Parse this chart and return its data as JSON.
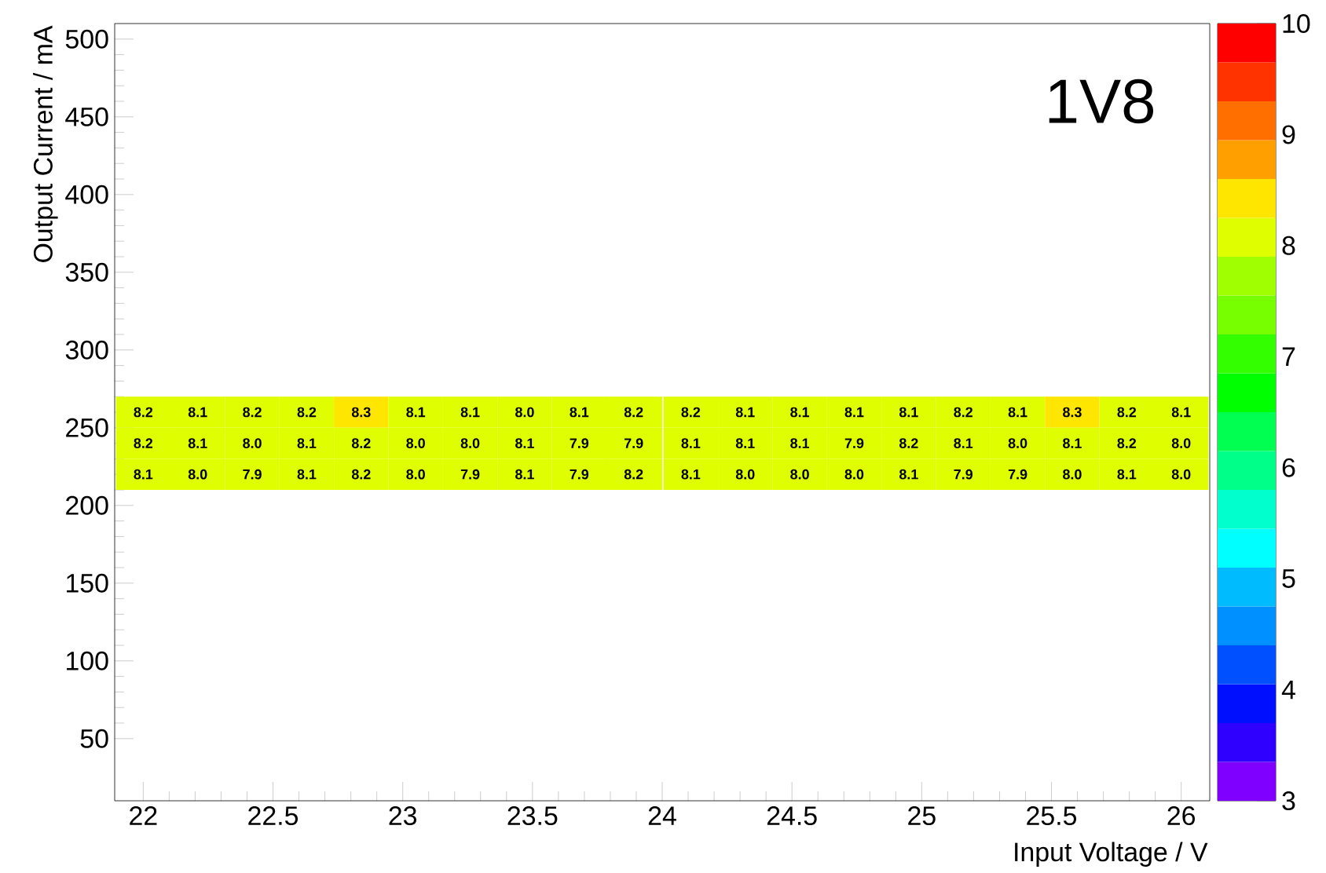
{
  "chart_data": {
    "type": "heatmap",
    "title": "1V8",
    "xlabel": "Input Voltage / V",
    "ylabel": "Output Current / mA",
    "x": [
      22,
      22.21,
      22.42,
      22.63,
      22.84,
      23.05,
      23.26,
      23.47,
      23.68,
      23.89,
      24.11,
      24.32,
      24.53,
      24.74,
      24.95,
      25.16,
      25.37,
      25.58,
      25.79,
      26
    ],
    "y": [
      260,
      240,
      220
    ],
    "cells": [
      [
        8.2,
        8.1,
        8.2,
        8.2,
        8.3,
        8.1,
        8.1,
        8.0,
        8.1,
        8.2,
        8.2,
        8.1,
        8.1,
        8.1,
        8.1,
        8.2,
        8.1,
        8.3,
        8.2,
        8.1
      ],
      [
        8.2,
        8.1,
        8.0,
        8.1,
        8.2,
        8.0,
        8.0,
        8.1,
        7.9,
        7.9,
        8.1,
        8.1,
        8.1,
        7.9,
        8.2,
        8.1,
        8.0,
        8.1,
        8.2,
        8.0
      ],
      [
        8.1,
        8.0,
        7.9,
        8.1,
        8.2,
        8.0,
        7.9,
        8.1,
        7.9,
        8.2,
        8.1,
        8.0,
        8.0,
        8.0,
        8.1,
        7.9,
        7.9,
        8.0,
        8.1,
        8.0
      ]
    ],
    "cell_labels": [
      [
        "8.2",
        "8.1",
        "8.2",
        "8.2",
        "8.3",
        "8.1",
        "8.1",
        "8.0",
        "8.1",
        "8.2",
        "8.2",
        "8.1",
        "8.1",
        "8.1",
        "8.1",
        "8.2",
        "8.1",
        "8.3",
        "8.2",
        "8.1"
      ],
      [
        "8.2",
        "8.1",
        "8.0",
        "8.1",
        "8.2",
        "8.0",
        "8.0",
        "8.1",
        "7.9",
        "7.9",
        "8.1",
        "8.1",
        "8.1",
        "7.9",
        "8.2",
        "8.1",
        "8.0",
        "8.1",
        "8.2",
        "8.0"
      ],
      [
        "8.1",
        "8.0",
        "7.9",
        "8.1",
        "8.2",
        "8.0",
        "7.9",
        "8.1",
        "7.9",
        "8.2",
        "8.1",
        "8.0",
        "8.0",
        "8.0",
        "8.1",
        "7.9",
        "7.9",
        "8.0",
        "8.1",
        "8.0"
      ]
    ],
    "xlim": [
      21.89,
      26.11
    ],
    "ylim": [
      10,
      510
    ],
    "xticks": [
      22,
      22.5,
      23,
      23.5,
      24,
      24.5,
      25,
      25.5,
      26
    ],
    "yticks": [
      50,
      100,
      150,
      200,
      250,
      300,
      350,
      400,
      450,
      500
    ],
    "clim": [
      3,
      10
    ],
    "cticks": [
      3,
      4,
      5,
      6,
      7,
      8,
      9,
      10
    ]
  }
}
